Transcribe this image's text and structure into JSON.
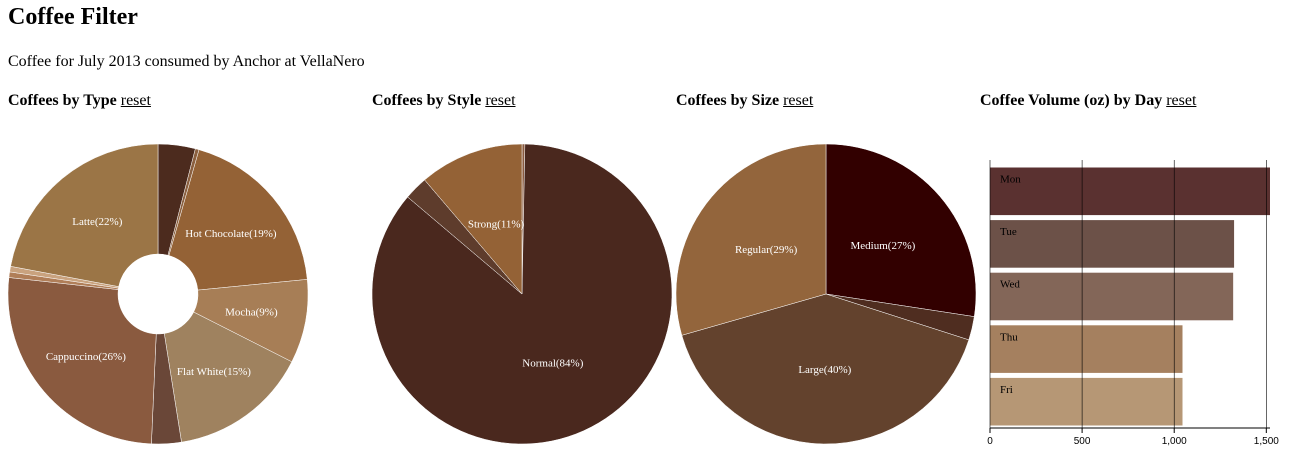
{
  "page": {
    "title": "Coffee Filter",
    "subtitle": "Coffee for July 2013 consumed by Anchor at VellaNero",
    "reset_label": "reset"
  },
  "chart_data": [
    {
      "id": "type",
      "type": "pie",
      "title": "Coffees by Type",
      "donut": true,
      "slices": [
        {
          "label": "",
          "value": 4,
          "color": "#4c2b1e"
        },
        {
          "label": "",
          "value": 0.4,
          "color": "#8b6040"
        },
        {
          "label": "Hot Chocolate(19%)",
          "value": 19,
          "color": "#946236"
        },
        {
          "label": "Mocha(9%)",
          "value": 9,
          "color": "#a77e56"
        },
        {
          "label": "Flat White(15%)",
          "value": 15,
          "color": "#9f825f"
        },
        {
          "label": "",
          "value": 3.2,
          "color": "#6a4738"
        },
        {
          "label": "Cappuccino(26%)",
          "value": 26,
          "color": "#8a5a3f"
        },
        {
          "label": "",
          "value": 0.6,
          "color": "#b07e58"
        },
        {
          "label": "",
          "value": 0.6,
          "color": "#c9a27e"
        },
        {
          "label": "Latte(22%)",
          "value": 22,
          "color": "#9b7546"
        }
      ]
    },
    {
      "id": "style",
      "type": "pie",
      "title": "Coffees by Style",
      "donut": false,
      "slices": [
        {
          "label": "",
          "value": 0.3,
          "color": "#8a5a3f"
        },
        {
          "label": "Normal(84%)",
          "value": 84,
          "color": "#4a281e"
        },
        {
          "label": "",
          "value": 2.5,
          "color": "#5e3c2c"
        },
        {
          "label": "Strong(11%)",
          "value": 11,
          "color": "#946236"
        }
      ]
    },
    {
      "id": "size",
      "type": "pie",
      "title": "Coffees by Size",
      "donut": false,
      "slices": [
        {
          "label": "Medium(27%)",
          "value": 27,
          "color": "#320000"
        },
        {
          "label": "",
          "value": 2.5,
          "color": "#4f2d20"
        },
        {
          "label": "Large(40%)",
          "value": 40,
          "color": "#63422d"
        },
        {
          "label": "Regular(29%)",
          "value": 29,
          "color": "#93653c"
        }
      ]
    },
    {
      "id": "day",
      "type": "bar",
      "title": "Coffee Volume (oz) by Day",
      "orientation": "horizontal",
      "categories": [
        "Mon",
        "Tue",
        "Wed",
        "Thu",
        "Fri"
      ],
      "values": [
        1520,
        1325,
        1320,
        1045,
        1045
      ],
      "colors": [
        "#5a3130",
        "#6c5148",
        "#836658",
        "#a5805f",
        "#b69775"
      ],
      "xlim": [
        0,
        1520
      ],
      "ticks": [
        0,
        500,
        1000,
        1500
      ],
      "tick_labels": [
        "0",
        "500",
        "1,000",
        "1,500"
      ]
    }
  ]
}
